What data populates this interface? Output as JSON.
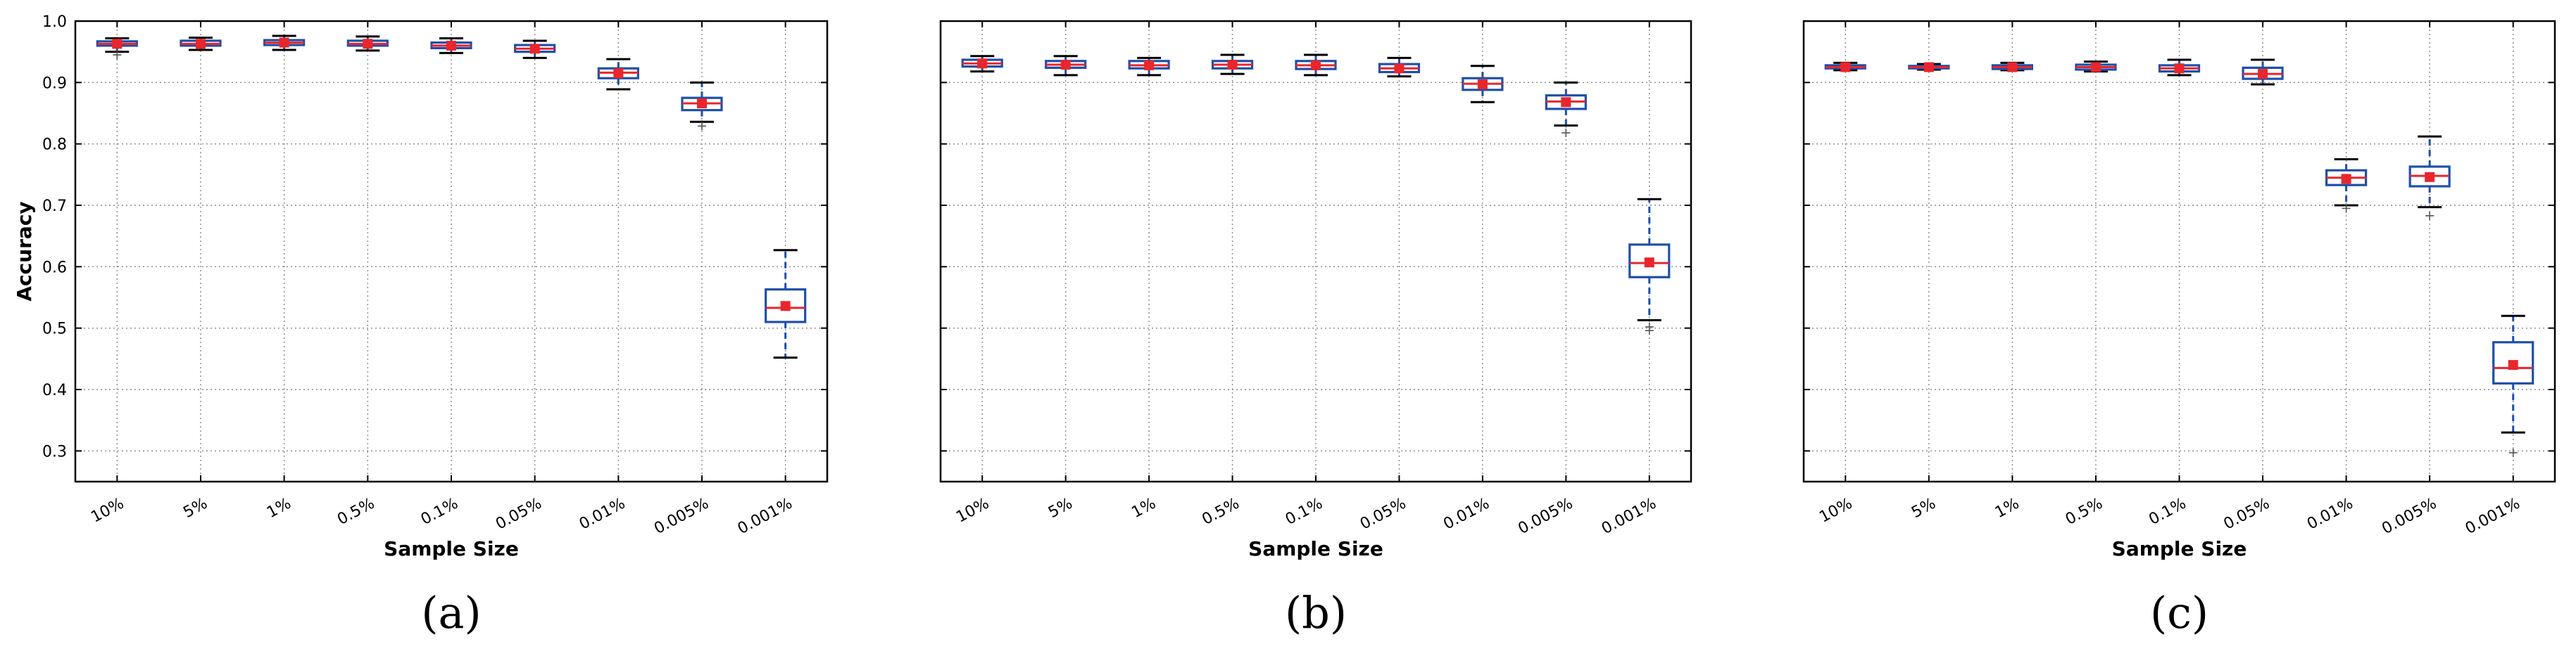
{
  "chart_data": [
    {
      "type": "box",
      "caption": "(a)",
      "xlabel": "Sample Size",
      "ylabel": "Accuracy",
      "ylim": [
        0.25,
        1.0
      ],
      "yticks": [
        0.3,
        0.4,
        0.5,
        0.6,
        0.7,
        0.8,
        0.9,
        1.0
      ],
      "ytick_labels": [
        "0.3",
        "0.4",
        "0.5",
        "0.6",
        "0.7",
        "0.8",
        "0.9",
        "1.0"
      ],
      "grid": true,
      "categories": [
        "10%",
        "5%",
        "1%",
        "0.5%",
        "0.1%",
        "0.05%",
        "0.01%",
        "0.005%",
        "0.001%"
      ],
      "boxes": [
        {
          "whisker_low": 0.95,
          "q1": 0.96,
          "median": 0.963,
          "q3": 0.967,
          "whisker_high": 0.972,
          "mean": 0.963,
          "outliers": [
            0.945
          ]
        },
        {
          "whisker_low": 0.953,
          "q1": 0.96,
          "median": 0.963,
          "q3": 0.968,
          "whisker_high": 0.973,
          "mean": 0.963,
          "outliers": []
        },
        {
          "whisker_low": 0.953,
          "q1": 0.961,
          "median": 0.965,
          "q3": 0.969,
          "whisker_high": 0.976,
          "mean": 0.965,
          "outliers": []
        },
        {
          "whisker_low": 0.952,
          "q1": 0.96,
          "median": 0.963,
          "q3": 0.968,
          "whisker_high": 0.975,
          "mean": 0.963,
          "outliers": []
        },
        {
          "whisker_low": 0.948,
          "q1": 0.956,
          "median": 0.96,
          "q3": 0.965,
          "whisker_high": 0.972,
          "mean": 0.96,
          "outliers": []
        },
        {
          "whisker_low": 0.94,
          "q1": 0.95,
          "median": 0.955,
          "q3": 0.961,
          "whisker_high": 0.968,
          "mean": 0.955,
          "outliers": []
        },
        {
          "whisker_low": 0.889,
          "q1": 0.907,
          "median": 0.916,
          "q3": 0.923,
          "whisker_high": 0.938,
          "mean": 0.915,
          "outliers": []
        },
        {
          "whisker_low": 0.836,
          "q1": 0.855,
          "median": 0.866,
          "q3": 0.875,
          "whisker_high": 0.9,
          "mean": 0.866,
          "outliers": [
            0.829
          ]
        },
        {
          "whisker_low": 0.452,
          "q1": 0.51,
          "median": 0.533,
          "q3": 0.563,
          "whisker_high": 0.627,
          "mean": 0.536,
          "outliers": []
        }
      ]
    },
    {
      "type": "box",
      "caption": "(b)",
      "xlabel": "Sample Size",
      "ylabel": "",
      "ylim": [
        0.25,
        1.0
      ],
      "yticks": [
        0.3,
        0.4,
        0.5,
        0.6,
        0.7,
        0.8,
        0.9,
        1.0
      ],
      "ytick_labels": [],
      "grid": true,
      "categories": [
        "10%",
        "5%",
        "1%",
        "0.5%",
        "0.1%",
        "0.05%",
        "0.01%",
        "0.005%",
        "0.001%"
      ],
      "boxes": [
        {
          "whisker_low": 0.918,
          "q1": 0.926,
          "median": 0.931,
          "q3": 0.937,
          "whisker_high": 0.943,
          "mean": 0.931,
          "outliers": []
        },
        {
          "whisker_low": 0.912,
          "q1": 0.924,
          "median": 0.929,
          "q3": 0.935,
          "whisker_high": 0.943,
          "mean": 0.929,
          "outliers": []
        },
        {
          "whisker_low": 0.912,
          "q1": 0.923,
          "median": 0.928,
          "q3": 0.935,
          "whisker_high": 0.94,
          "mean": 0.928,
          "outliers": []
        },
        {
          "whisker_low": 0.914,
          "q1": 0.923,
          "median": 0.929,
          "q3": 0.935,
          "whisker_high": 0.945,
          "mean": 0.929,
          "outliers": []
        },
        {
          "whisker_low": 0.912,
          "q1": 0.922,
          "median": 0.928,
          "q3": 0.935,
          "whisker_high": 0.945,
          "mean": 0.928,
          "outliers": []
        },
        {
          "whisker_low": 0.91,
          "q1": 0.917,
          "median": 0.923,
          "q3": 0.93,
          "whisker_high": 0.94,
          "mean": 0.923,
          "outliers": []
        },
        {
          "whisker_low": 0.868,
          "q1": 0.888,
          "median": 0.898,
          "q3": 0.907,
          "whisker_high": 0.927,
          "mean": 0.897,
          "outliers": []
        },
        {
          "whisker_low": 0.83,
          "q1": 0.857,
          "median": 0.869,
          "q3": 0.879,
          "whisker_high": 0.9,
          "mean": 0.868,
          "outliers": [
            0.818
          ]
        },
        {
          "whisker_low": 0.513,
          "q1": 0.583,
          "median": 0.606,
          "q3": 0.636,
          "whisker_high": 0.71,
          "mean": 0.607,
          "outliers": [
            0.496,
            0.502
          ]
        }
      ]
    },
    {
      "type": "box",
      "caption": "(c)",
      "xlabel": "Sample Size",
      "ylabel": "",
      "ylim": [
        0.25,
        1.0
      ],
      "yticks": [
        0.3,
        0.4,
        0.5,
        0.6,
        0.7,
        0.8,
        0.9,
        1.0
      ],
      "ytick_labels": [],
      "grid": true,
      "categories": [
        "10%",
        "5%",
        "1%",
        "0.5%",
        "0.1%",
        "0.05%",
        "0.01%",
        "0.005%",
        "0.001%"
      ],
      "boxes": [
        {
          "whisker_low": 0.92,
          "q1": 0.923,
          "median": 0.925,
          "q3": 0.928,
          "whisker_high": 0.932,
          "mean": 0.925,
          "outliers": []
        },
        {
          "whisker_low": 0.921,
          "q1": 0.923,
          "median": 0.925,
          "q3": 0.927,
          "whisker_high": 0.93,
          "mean": 0.925,
          "outliers": []
        },
        {
          "whisker_low": 0.92,
          "q1": 0.922,
          "median": 0.925,
          "q3": 0.928,
          "whisker_high": 0.932,
          "mean": 0.925,
          "outliers": []
        },
        {
          "whisker_low": 0.918,
          "q1": 0.921,
          "median": 0.925,
          "q3": 0.929,
          "whisker_high": 0.934,
          "mean": 0.925,
          "outliers": []
        },
        {
          "whisker_low": 0.912,
          "q1": 0.918,
          "median": 0.923,
          "q3": 0.928,
          "whisker_high": 0.937,
          "mean": 0.923,
          "outliers": []
        },
        {
          "whisker_low": 0.897,
          "q1": 0.906,
          "median": 0.914,
          "q3": 0.924,
          "whisker_high": 0.937,
          "mean": 0.914,
          "outliers": []
        },
        {
          "whisker_low": 0.7,
          "q1": 0.733,
          "median": 0.745,
          "q3": 0.757,
          "whisker_high": 0.775,
          "mean": 0.743,
          "outliers": [
            0.695
          ]
        },
        {
          "whisker_low": 0.697,
          "q1": 0.731,
          "median": 0.748,
          "q3": 0.763,
          "whisker_high": 0.812,
          "mean": 0.746,
          "outliers": [
            0.683
          ]
        },
        {
          "whisker_low": 0.33,
          "q1": 0.41,
          "median": 0.435,
          "q3": 0.477,
          "whisker_high": 0.52,
          "mean": 0.44,
          "outliers": [
            0.297
          ]
        }
      ]
    }
  ]
}
